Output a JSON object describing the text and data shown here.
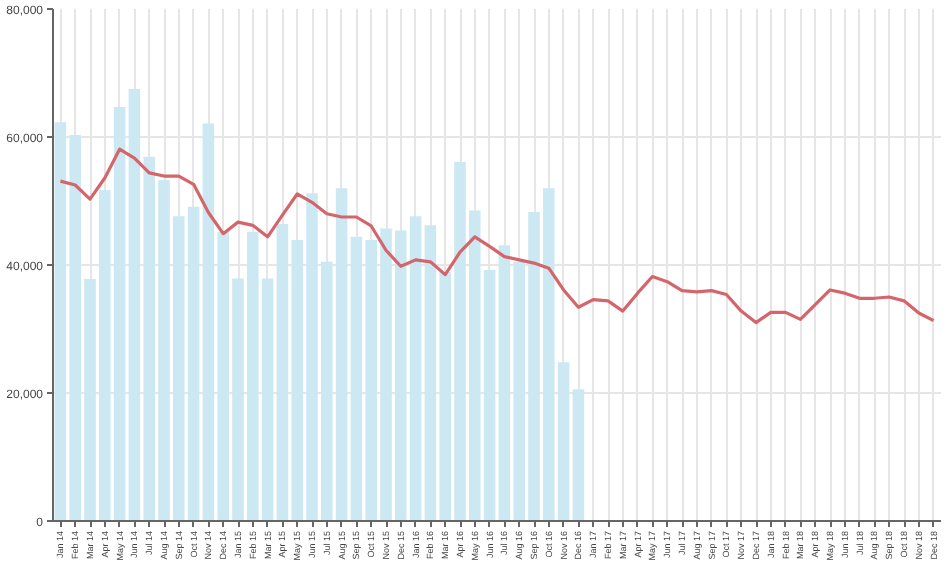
{
  "chart_data": {
    "type": "bar",
    "categories": [
      "Jan 14",
      "Feb 14",
      "Mar 14",
      "Apr 14",
      "May 14",
      "Jun 14",
      "Jul 14",
      "Aug 14",
      "Sep 14",
      "Oct 14",
      "Nov 14",
      "Dec 14",
      "Jan 15",
      "Feb 15",
      "Mar 15",
      "Apr 15",
      "May 15",
      "Jun 15",
      "Jul 15",
      "Aug 15",
      "Sep 15",
      "Oct 15",
      "Nov 15",
      "Dec 15",
      "Jan 16",
      "Feb 16",
      "Mar 16",
      "Apr 16",
      "May 16",
      "Jun 16",
      "Jul 16",
      "Aug 16",
      "Sep 16",
      "Oct 16",
      "Nov 16",
      "Dec 16",
      "Jan 17",
      "Feb 17",
      "Mar 17",
      "Apr 17",
      "May 17",
      "Jun 17",
      "Jul 17",
      "Aug 17",
      "Sep 17",
      "Oct 17",
      "Nov 17",
      "Dec 17",
      "Jan 18",
      "Feb 18",
      "Mar 18",
      "Apr 18",
      "May 18",
      "Jun 18",
      "Jul 18",
      "Aug 18",
      "Sep 18",
      "Oct 18",
      "Nov 18",
      "Dec 18"
    ],
    "series": [
      {
        "color": "#cbe8f3",
        "values": [
          62300,
          60300,
          37800,
          51700,
          64700,
          67500,
          56900,
          53300,
          47600,
          49100,
          62100,
          45200,
          37900,
          45200,
          37900,
          46400,
          43900,
          51200,
          40500,
          52000,
          44400,
          43900,
          45700,
          45400,
          47600,
          46200,
          38900,
          56100,
          48500,
          39200,
          43100,
          40500,
          48300,
          52000,
          24800,
          20600,
          null,
          null,
          null,
          null,
          null,
          null,
          null,
          null,
          null,
          null,
          null,
          null,
          null,
          null,
          null,
          null,
          null,
          null,
          null,
          null,
          null,
          null,
          null,
          null
        ]
      },
      {
        "type": "line",
        "color": "#d4666b",
        "values": [
          53100,
          52500,
          50300,
          53600,
          58100,
          56700,
          54400,
          53900,
          53900,
          52600,
          48200,
          44900,
          46700,
          46200,
          44400,
          47800,
          51100,
          49800,
          48000,
          47500,
          47500,
          46100,
          42300,
          39800,
          40800,
          40500,
          38500,
          42000,
          44400,
          42900,
          41300,
          40800,
          40300,
          39500,
          36100,
          33400,
          34600,
          34400,
          32800,
          35600,
          38200,
          37400,
          36000,
          35800,
          36000,
          35400,
          32800,
          31000,
          32600,
          32600,
          31500,
          33800,
          36100,
          35600,
          34800,
          34800,
          35000,
          34400,
          32500,
          31300
        ]
      }
    ],
    "ylim": [
      0,
      80000
    ],
    "yticks": [
      {
        "value": 0,
        "label": "0"
      },
      {
        "value": 20000,
        "label": "20,000"
      },
      {
        "value": 40000,
        "label": "40,000"
      },
      {
        "value": 60000,
        "label": "60,000"
      },
      {
        "value": 80000,
        "label": "80,000"
      }
    ],
    "grid": true
  }
}
